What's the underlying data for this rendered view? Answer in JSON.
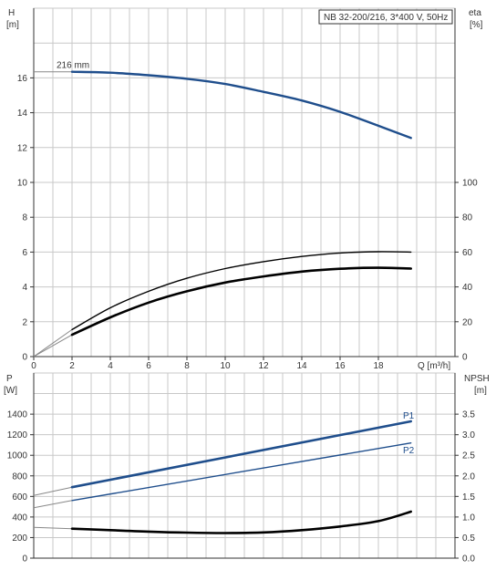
{
  "chart_data": [
    {
      "type": "line",
      "title": "NB 32-200/216, 3*400 V, 50Hz",
      "xlabel": "Q [m³/h]",
      "x_tick_labels": [
        "0",
        "2",
        "4",
        "6",
        "8",
        "10",
        "12",
        "14",
        "16",
        "18"
      ],
      "xlim": [
        0,
        22
      ],
      "left_axis": {
        "name": "H",
        "unit": "[m]",
        "ylim": [
          0,
          20
        ],
        "ticks": [
          "0",
          "2",
          "4",
          "6",
          "8",
          "10",
          "12",
          "14",
          "16"
        ]
      },
      "right_axis": {
        "name": "eta",
        "unit": "[%]",
        "ylim": [
          0,
          200
        ],
        "ticks": [
          "0",
          "20",
          "40",
          "60",
          "80",
          "100"
        ]
      },
      "annotations": [
        {
          "text": "216 mm",
          "x": 2.0,
          "y": 16.3
        }
      ],
      "series": [
        {
          "name": "216 mm",
          "axis": "left",
          "color": "#1f4e8c",
          "width": 2.4,
          "x": [
            0,
            2,
            4,
            6,
            8,
            10,
            12,
            14,
            16,
            18,
            19.7
          ],
          "y": [
            16.35,
            16.35,
            16.3,
            16.15,
            15.95,
            15.65,
            15.2,
            14.7,
            14.05,
            13.25,
            12.55
          ],
          "extrapolated_from": 2
        },
        {
          "axis": "right",
          "color": "#000000",
          "width": 1.4,
          "x": [
            0,
            2,
            4,
            6,
            8,
            10,
            12,
            14,
            16,
            18,
            19.7
          ],
          "y": [
            0,
            15.5,
            28,
            37.5,
            45,
            50.5,
            54.5,
            57.5,
            59.5,
            60.2,
            60
          ],
          "extrapolated_from": 2
        },
        {
          "axis": "right",
          "color": "#000000",
          "width": 2.6,
          "x": [
            0,
            2,
            4,
            6,
            8,
            10,
            12,
            14,
            16,
            18,
            19.7
          ],
          "y": [
            0,
            12.5,
            22.5,
            31,
            37.5,
            42.5,
            46,
            48.8,
            50.4,
            51,
            50.5
          ],
          "extrapolated_from": 2
        }
      ]
    },
    {
      "type": "line",
      "xlim": [
        0,
        22
      ],
      "left_axis": {
        "name": "P",
        "unit": "[W]",
        "ylim": [
          0,
          1800
        ],
        "ticks": [
          "0",
          "200",
          "400",
          "600",
          "800",
          "1000",
          "1200",
          "1400"
        ]
      },
      "right_axis": {
        "name": "NPSH",
        "unit": "[m]",
        "ylim": [
          0,
          4.5
        ],
        "ticks": [
          "0.0",
          "0.5",
          "1.0",
          "1.5",
          "2.0",
          "2.5",
          "3.0",
          "3.5"
        ]
      },
      "series": [
        {
          "name": "P1",
          "axis": "left",
          "color": "#1f4e8c",
          "width": 2.6,
          "x": [
            0,
            2,
            19.7
          ],
          "y": [
            610,
            690,
            1330
          ],
          "extrapolated_from": 2
        },
        {
          "name": "P2",
          "axis": "left",
          "color": "#1f4e8c",
          "width": 1.4,
          "x": [
            0,
            2,
            19.7
          ],
          "y": [
            490,
            560,
            1120
          ],
          "extrapolated_from": 2
        },
        {
          "axis": "right",
          "color": "#000000",
          "width": 2.6,
          "x": [
            0,
            2,
            4,
            6,
            8,
            10,
            12,
            14,
            16,
            18,
            19.7
          ],
          "y": [
            0.75,
            0.715,
            0.68,
            0.645,
            0.62,
            0.61,
            0.625,
            0.68,
            0.77,
            0.9,
            1.13
          ],
          "extrapolated_from": 2
        }
      ]
    }
  ]
}
